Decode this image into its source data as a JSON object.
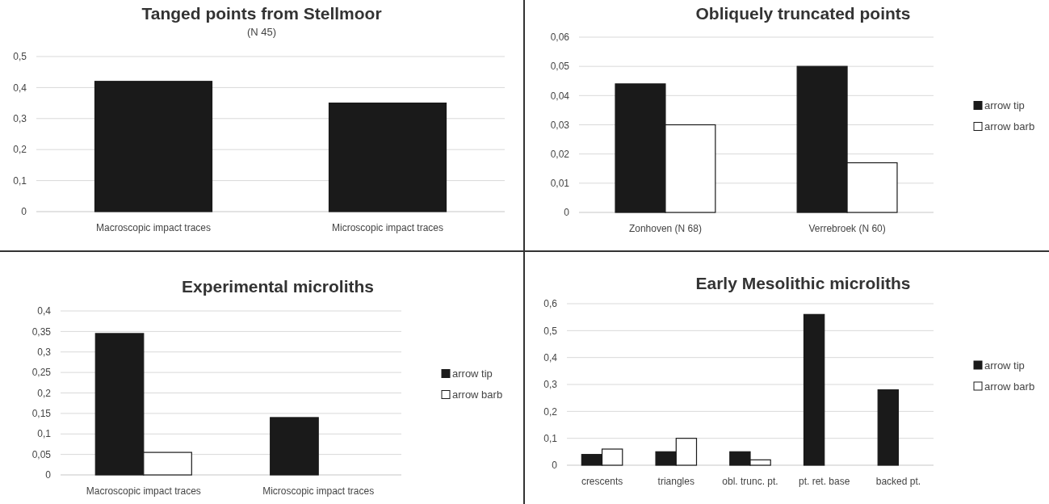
{
  "chart_data": [
    {
      "type": "bar",
      "title": "Tanged points from Stellmoor",
      "subtitle": "(N 45)",
      "categories": [
        "Macroscopic impact traces",
        "Microscopic impact traces"
      ],
      "series": [
        {
          "color": "#1a1a1a",
          "values": [
            0.42,
            0.35
          ]
        }
      ],
      "ylim": [
        0,
        0.5
      ],
      "yticks": [
        {
          "value": 0,
          "label": "0"
        },
        {
          "value": 0.1,
          "label": "0,1"
        },
        {
          "value": 0.2,
          "label": "0,2"
        },
        {
          "value": 0.3,
          "label": "0,3"
        },
        {
          "value": 0.4,
          "label": "0,4"
        },
        {
          "value": 0.5,
          "label": "0,5"
        }
      ],
      "grid": "y",
      "legend": false
    },
    {
      "type": "bar",
      "title": "Obliquely truncated points",
      "categories": [
        "Zonhoven (N 68)",
        "Verrebroek (N 60)"
      ],
      "series": [
        {
          "name": "arrow tip",
          "color": "#1a1a1a",
          "values": [
            0.044,
            0.05
          ]
        },
        {
          "name": "arrow barb",
          "color": "#ffffff",
          "values": [
            0.03,
            0.017
          ]
        }
      ],
      "ylim": [
        0,
        0.06
      ],
      "yticks": [
        {
          "value": 0,
          "label": "0"
        },
        {
          "value": 0.01,
          "label": "0,01"
        },
        {
          "value": 0.02,
          "label": "0,02"
        },
        {
          "value": 0.03,
          "label": "0,03"
        },
        {
          "value": 0.04,
          "label": "0,04"
        },
        {
          "value": 0.05,
          "label": "0,05"
        },
        {
          "value": 0.06,
          "label": "0,06"
        }
      ],
      "grid": "y",
      "legend": "right"
    },
    {
      "type": "bar",
      "title": "Experimental microliths",
      "categories": [
        "Macroscopic impact traces",
        "Microscopic impact traces"
      ],
      "series": [
        {
          "name": "arrow tip",
          "color": "#1a1a1a",
          "values": [
            0.345,
            0.14
          ]
        },
        {
          "name": "arrow barb",
          "color": "#ffffff",
          "values": [
            0.055,
            null
          ]
        }
      ],
      "ylim": [
        0,
        0.4
      ],
      "yticks": [
        {
          "value": 0,
          "label": "0"
        },
        {
          "value": 0.05,
          "label": "0,05"
        },
        {
          "value": 0.1,
          "label": "0,1"
        },
        {
          "value": 0.15,
          "label": "0,15"
        },
        {
          "value": 0.2,
          "label": "0,2"
        },
        {
          "value": 0.25,
          "label": "0,25"
        },
        {
          "value": 0.3,
          "label": "0,3"
        },
        {
          "value": 0.35,
          "label": "0,35"
        },
        {
          "value": 0.4,
          "label": "0,4"
        }
      ],
      "grid": "y",
      "legend": "right"
    },
    {
      "type": "bar",
      "title": "Early Mesolithic microliths",
      "categories": [
        "crescents",
        "triangles",
        "obl. trunc. pt.",
        "pt. ret. base",
        "backed pt."
      ],
      "series": [
        {
          "name": "arrow tip",
          "color": "#1a1a1a",
          "values": [
            0.04,
            0.05,
            0.05,
            0.56,
            0.28
          ]
        },
        {
          "name": "arrow barb",
          "color": "#ffffff",
          "values": [
            0.06,
            0.1,
            0.02,
            null,
            null
          ]
        }
      ],
      "ylim": [
        0,
        0.6
      ],
      "yticks": [
        {
          "value": 0,
          "label": "0"
        },
        {
          "value": 0.1,
          "label": "0,1"
        },
        {
          "value": 0.2,
          "label": "0,2"
        },
        {
          "value": 0.3,
          "label": "0,3"
        },
        {
          "value": 0.4,
          "label": "0,4"
        },
        {
          "value": 0.5,
          "label": "0,5"
        },
        {
          "value": 0.6,
          "label": "0,6"
        }
      ],
      "grid": "y",
      "legend": "right"
    }
  ]
}
